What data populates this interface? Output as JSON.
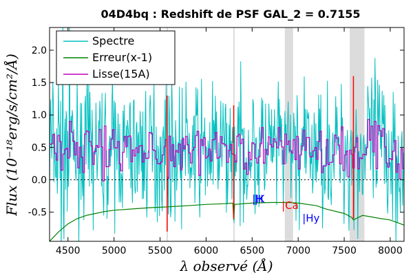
{
  "chart_data": {
    "type": "line",
    "title": "04D4bq : Redshift de PSF GAL_2 = 0.7155",
    "xlabel": "λ observé (Å)",
    "ylabel": "Flux (10⁻¹⁸erg/s/cm²/Å)",
    "xlim": [
      4300,
      8150
    ],
    "ylim": [
      -0.95,
      2.35
    ],
    "xticks": [
      "4500",
      "5000",
      "5500",
      "6000",
      "6500",
      "7000",
      "7500",
      "8000"
    ],
    "yticks": [
      "2.0",
      "1.5",
      "1.0",
      "0.5",
      "0.0",
      "-0.5"
    ],
    "grid": false,
    "legend_position": "top-left",
    "series": [
      {
        "name": "Spectre",
        "color": "#00bfbf"
      },
      {
        "name": "Erreur(x-1)",
        "color": "#008000"
      },
      {
        "name": "Lisse(15A)",
        "color": "#bf00bf"
      }
    ],
    "error_curve": {
      "x": [
        4300,
        4400,
        4500,
        4600,
        4700,
        4800,
        4900,
        5000,
        5200,
        5400,
        5550,
        5800,
        6000,
        6200,
        6290,
        6300,
        6310,
        6500,
        6700,
        6900,
        7000,
        7200,
        7300,
        7500,
        7580,
        7600,
        7700,
        7900,
        8000,
        8150
      ],
      "y": [
        -0.95,
        -0.8,
        -0.68,
        -0.6,
        -0.55,
        -0.52,
        -0.49,
        -0.47,
        -0.45,
        -0.43,
        -0.42,
        -0.4,
        -0.38,
        -0.37,
        -0.36,
        -0.62,
        -0.38,
        -0.36,
        -0.35,
        -0.35,
        -0.36,
        -0.4,
        -0.45,
        -0.52,
        -0.58,
        -0.62,
        -0.55,
        -0.6,
        -0.62,
        -0.7
      ]
    },
    "sky_bands": [
      [
        5570,
        5585
      ],
      [
        6295,
        6310
      ],
      [
        6855,
        6945
      ],
      [
        7560,
        7720
      ]
    ],
    "sky_lines": [
      {
        "x": 5577,
        "ymin": -0.8,
        "ymax": 1.3
      },
      {
        "x": 6300,
        "ymin": -0.6,
        "ymax": 1.15
      },
      {
        "x": 7600,
        "ymin": -0.6,
        "ymax": 1.6
      }
    ],
    "line_markers": [
      {
        "label": "H",
        "x": 6500,
        "y": -0.35,
        "color": "#0000ff"
      },
      {
        "label": "K",
        "x": 6525,
        "y": -0.35,
        "color": "#0000ff"
      },
      {
        "label": "Ca",
        "x": 6820,
        "y": -0.45,
        "color": "#ff0000"
      },
      {
        "label": "Hy",
        "x": 7045,
        "y": -0.65,
        "color": "#0000ff"
      }
    ],
    "zero_line": 0.0
  }
}
